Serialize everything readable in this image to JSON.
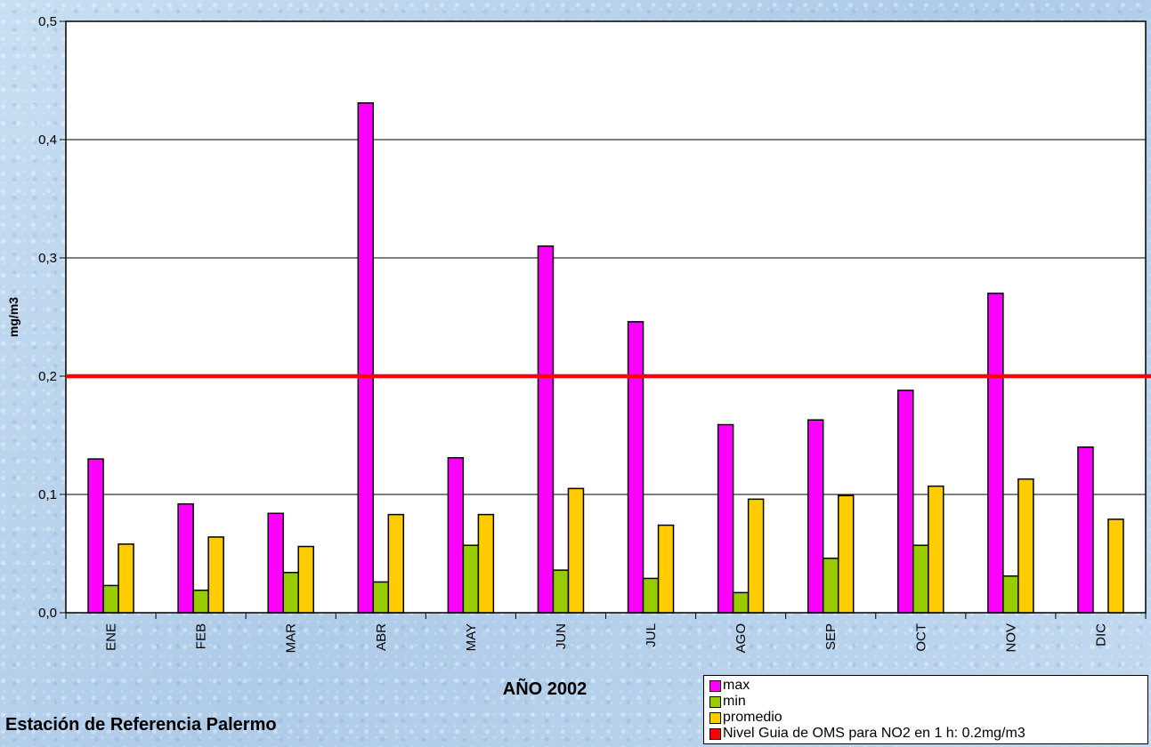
{
  "chart_data": {
    "type": "bar",
    "categories": [
      "ENE",
      "FEB",
      "MAR",
      "ABR",
      "MAY",
      "JUN",
      "JUL",
      "AGO",
      "SEP",
      "OCT",
      "NOV",
      "DIC"
    ],
    "series": [
      {
        "name": "max",
        "color": "#ff00ff",
        "values": [
          0.13,
          0.092,
          0.084,
          0.431,
          0.131,
          0.31,
          0.246,
          0.159,
          0.163,
          0.188,
          0.27,
          0.14
        ]
      },
      {
        "name": "min",
        "color": "#99cc00",
        "values": [
          0.023,
          0.019,
          0.034,
          0.026,
          0.057,
          0.036,
          0.029,
          0.017,
          0.046,
          0.057,
          0.031,
          null
        ]
      },
      {
        "name": "promedio",
        "color": "#ffcc00",
        "values": [
          0.058,
          0.064,
          0.056,
          0.083,
          0.083,
          0.105,
          0.074,
          0.096,
          0.099,
          0.107,
          0.113,
          0.079
        ]
      }
    ],
    "reference_line": {
      "name": "Nivel Guia de OMS  para NO2 en 1 h: 0.2mg/m3",
      "value": 0.2,
      "color": "#ff0000"
    },
    "ylabel": "mg/m3",
    "xlabel": "AÑO 2002",
    "ylim": [
      0,
      0.5
    ],
    "yticks": [
      0.0,
      0.1,
      0.2,
      0.3,
      0.4,
      0.5
    ],
    "ytick_labels": [
      "0,0",
      "0,1",
      "0,2",
      "0,3",
      "0,4",
      "0,5"
    ],
    "grid": true,
    "legend_position": "bottom-right"
  },
  "caption": "Estación de Referencia Palermo"
}
